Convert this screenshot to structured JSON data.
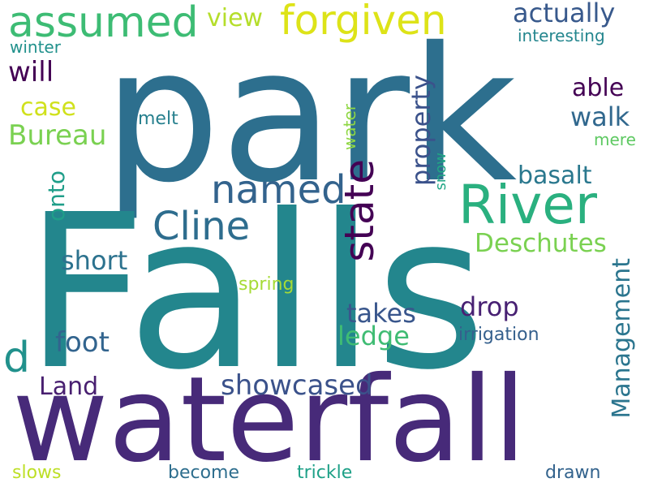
{
  "words": [
    {
      "text": "park",
      "color": "#2d6f8e"
    },
    {
      "text": "Falls",
      "color": "#23868d"
    },
    {
      "text": "waterfall",
      "color": "#472a79"
    },
    {
      "text": "River",
      "color": "#2ab07f"
    },
    {
      "text": "forgiven",
      "color": "#dde318"
    },
    {
      "text": "assumed",
      "color": "#3dbc74"
    },
    {
      "text": "named",
      "color": "#33638d"
    },
    {
      "text": "Cline",
      "color": "#2e6d8e"
    },
    {
      "text": "state",
      "color": "#440154"
    },
    {
      "text": "Deschutes",
      "color": "#7ad151"
    },
    {
      "text": "actually",
      "color": "#38598c"
    },
    {
      "text": "interesting",
      "color": "#24868e"
    },
    {
      "text": "view",
      "color": "#b5de2b"
    },
    {
      "text": "will",
      "color": "#440154"
    },
    {
      "text": "case",
      "color": "#d0e11c"
    },
    {
      "text": "Bureau",
      "color": "#7ad151"
    },
    {
      "text": "winter",
      "color": "#21918c"
    },
    {
      "text": "melt",
      "color": "#27808e"
    },
    {
      "text": "water",
      "color": "#8fd744"
    },
    {
      "text": "snow",
      "color": "#21a685"
    },
    {
      "text": "property",
      "color": "#3b528b"
    },
    {
      "text": "able",
      "color": "#440154"
    },
    {
      "text": "walk",
      "color": "#31688e"
    },
    {
      "text": "mere",
      "color": "#5ec962"
    },
    {
      "text": "basalt",
      "color": "#2a788e"
    },
    {
      "text": "onto",
      "color": "#1f9e89"
    },
    {
      "text": "short",
      "color": "#2c728e"
    },
    {
      "text": "spring",
      "color": "#a5db36"
    },
    {
      "text": "takes",
      "color": "#39568c"
    },
    {
      "text": "drop",
      "color": "#482173"
    },
    {
      "text": "Management",
      "color": "#2b758e"
    },
    {
      "text": "ledge",
      "color": "#3fbc73"
    },
    {
      "text": "foot",
      "color": "#32648e"
    },
    {
      "text": "d",
      "color": "#21918c"
    },
    {
      "text": "irrigation",
      "color": "#35608d"
    },
    {
      "text": "Land",
      "color": "#481f70"
    },
    {
      "text": "showcased",
      "color": "#3b528b"
    },
    {
      "text": "slows",
      "color": "#bddf26"
    },
    {
      "text": "become",
      "color": "#2e6e8e"
    },
    {
      "text": "trickle",
      "color": "#1fa188"
    },
    {
      "text": "drawn",
      "color": "#33638d"
    }
  ]
}
